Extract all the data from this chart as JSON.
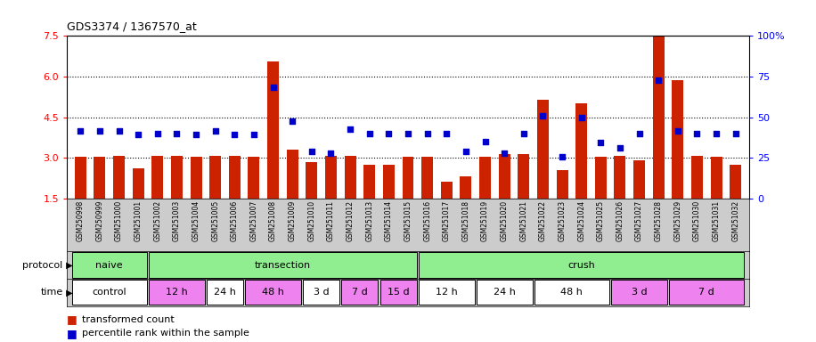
{
  "title": "GDS3374 / 1367570_at",
  "samples": [
    "GSM250998",
    "GSM250999",
    "GSM251000",
    "GSM251001",
    "GSM251002",
    "GSM251003",
    "GSM251004",
    "GSM251005",
    "GSM251006",
    "GSM251007",
    "GSM251008",
    "GSM251009",
    "GSM251010",
    "GSM251011",
    "GSM251012",
    "GSM251013",
    "GSM251014",
    "GSM251015",
    "GSM251016",
    "GSM251017",
    "GSM251018",
    "GSM251019",
    "GSM251020",
    "GSM251021",
    "GSM251022",
    "GSM251023",
    "GSM251024",
    "GSM251025",
    "GSM251026",
    "GSM251027",
    "GSM251028",
    "GSM251029",
    "GSM251030",
    "GSM251031",
    "GSM251032"
  ],
  "red_values": [
    3.05,
    3.05,
    3.07,
    2.6,
    3.08,
    3.08,
    3.05,
    3.06,
    3.06,
    3.03,
    6.55,
    3.3,
    2.85,
    3.08,
    3.06,
    2.75,
    2.75,
    3.05,
    3.05,
    2.1,
    2.3,
    3.05,
    3.12,
    3.15,
    5.15,
    2.55,
    5.0,
    3.03,
    3.08,
    2.9,
    7.5,
    5.85,
    3.08,
    3.05,
    2.75
  ],
  "blue_values": [
    4.0,
    4.0,
    4.0,
    3.85,
    3.9,
    3.88,
    3.87,
    4.0,
    3.87,
    3.85,
    5.6,
    4.35,
    3.25,
    3.18,
    4.05,
    3.88,
    3.9,
    3.9,
    3.9,
    3.9,
    3.25,
    3.6,
    3.18,
    3.88,
    4.55,
    3.05,
    4.5,
    3.55,
    3.35,
    3.88,
    5.85,
    4.0,
    3.9,
    3.9,
    3.88
  ],
  "ylim_left": [
    1.5,
    7.5
  ],
  "ylim_right": [
    0,
    100
  ],
  "yticks_left": [
    1.5,
    3.0,
    4.5,
    6.0,
    7.5
  ],
  "yticks_right": [
    0,
    25,
    50,
    75,
    100
  ],
  "bar_color": "#cc2200",
  "dot_color": "#0000cc",
  "protocol_row": [
    {
      "label": "naive",
      "start": 0,
      "end": 3,
      "color": "#90ee90"
    },
    {
      "label": "transection",
      "start": 4,
      "end": 17,
      "color": "#90ee90"
    },
    {
      "label": "crush",
      "start": 18,
      "end": 34,
      "color": "#90ee90"
    }
  ],
  "time_row": [
    {
      "label": "control",
      "start": 0,
      "end": 3,
      "color": "#ffffff"
    },
    {
      "label": "12 h",
      "start": 4,
      "end": 6,
      "color": "#ee82ee"
    },
    {
      "label": "24 h",
      "start": 7,
      "end": 8,
      "color": "#ffffff"
    },
    {
      "label": "48 h",
      "start": 9,
      "end": 11,
      "color": "#ee82ee"
    },
    {
      "label": "3 d",
      "start": 12,
      "end": 13,
      "color": "#ffffff"
    },
    {
      "label": "7 d",
      "start": 14,
      "end": 15,
      "color": "#ee82ee"
    },
    {
      "label": "15 d",
      "start": 16,
      "end": 17,
      "color": "#ee82ee"
    },
    {
      "label": "12 h",
      "start": 18,
      "end": 20,
      "color": "#ffffff"
    },
    {
      "label": "24 h",
      "start": 21,
      "end": 23,
      "color": "#ffffff"
    },
    {
      "label": "48 h",
      "start": 24,
      "end": 27,
      "color": "#ffffff"
    },
    {
      "label": "3 d",
      "start": 28,
      "end": 30,
      "color": "#ee82ee"
    },
    {
      "label": "7 d",
      "start": 31,
      "end": 34,
      "color": "#ee82ee"
    }
  ],
  "legend": [
    {
      "color": "#cc2200",
      "label": "transformed count"
    },
    {
      "color": "#0000cc",
      "label": "percentile rank within the sample"
    }
  ],
  "label_bg_color": "#cccccc",
  "protocol_label": "protocol",
  "time_label": "time"
}
